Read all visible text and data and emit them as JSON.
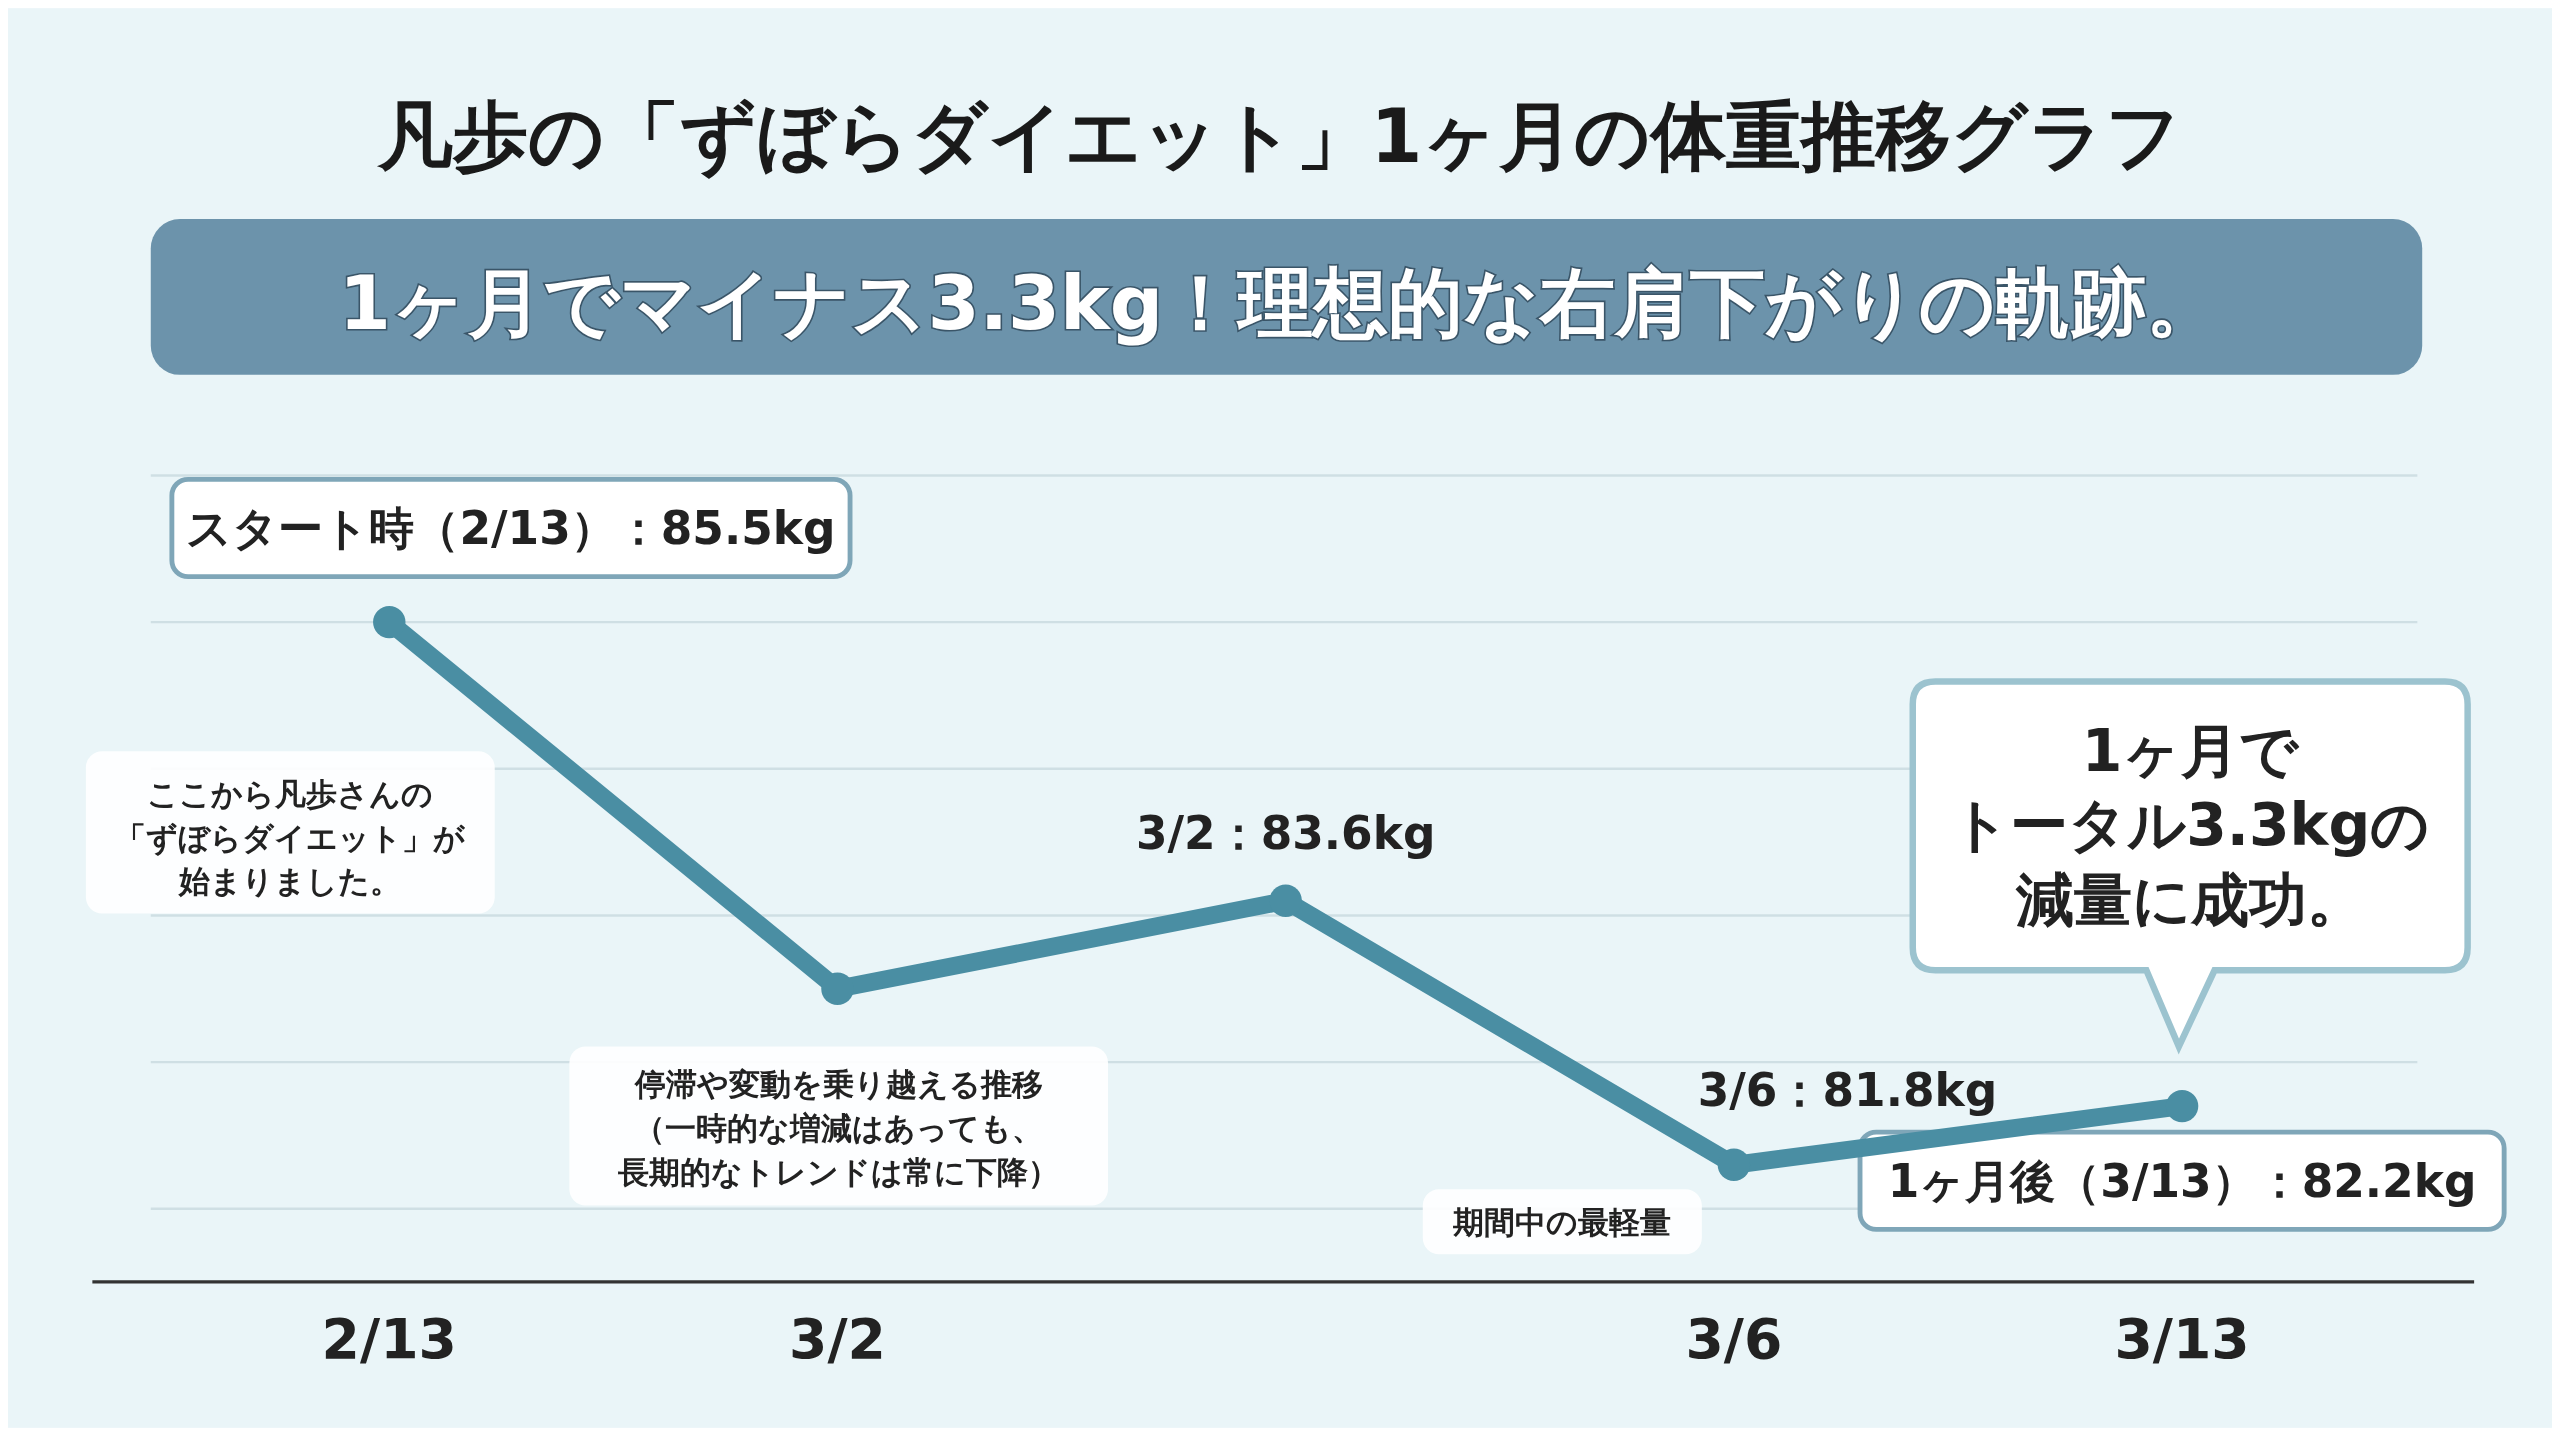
{
  "chart_data": {
    "type": "line",
    "title": "凡歩の「ずぼらダイエット」1ヶ月の体重推移グラフ",
    "subtitle": "1ヶ月でマイナス3.3kg！理想的な右肩下がりの軌跡。",
    "categories": [
      "2/13",
      "3/2",
      null,
      "3/6",
      "3/13"
    ],
    "yticks": [
      {
        "value": 81.5,
        "label": null
      },
      {
        "value": 82.5,
        "label": null
      },
      {
        "value": 83.5,
        "label": null
      },
      {
        "value": 84.5,
        "label": null
      },
      {
        "value": 85.5,
        "label": null
      },
      {
        "value": 86.5,
        "label": null
      }
    ],
    "tick_labels": "x",
    "grid": "y",
    "marker": "circle",
    "line_style": "solid",
    "series": [
      {
        "color": "#4a8ea3",
        "values": [
          85.5,
          83.0,
          83.6,
          81.8,
          82.2
        ],
        "value_labels": [
          "スタート時（2/13）：85.5kg",
          null,
          "3/2：83.6kg",
          "3/6：81.8kg",
          "1ヶ月後（3/13）：82.2kg"
        ]
      }
    ],
    "annotations": [
      "ここから凡歩さんの「ずぼらダイエット」が始まりました。",
      "停滞や変動を乗り越える推移（一時的な増減はあっても、長期的なトレンドは常に下降）",
      "期間中の最軽量",
      "1ヶ月でトータル3.3kgの減量に成功。"
    ]
  }
}
